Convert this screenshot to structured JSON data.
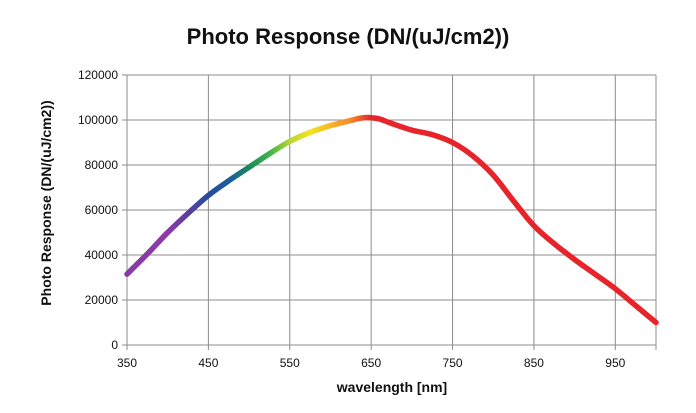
{
  "chart_data": {
    "type": "line",
    "title": "Photo Response (DN/(uJ/cm2))",
    "xlabel": "wavelength [nm]",
    "ylabel": "Photo Response (DN/(uJ/cm2))",
    "xlim": [
      350,
      1000
    ],
    "ylim": [
      0,
      120000
    ],
    "x_ticks": [
      350,
      450,
      550,
      650,
      750,
      850,
      950
    ],
    "y_ticks": [
      0,
      20000,
      40000,
      60000,
      80000,
      100000,
      120000
    ],
    "grid": true,
    "legend": "none",
    "series": [
      {
        "x": [
          350,
          375,
          400,
          425,
          450,
          475,
          500,
          525,
          550,
          575,
          600,
          625,
          640,
          650,
          660,
          675,
          700,
          725,
          750,
          775,
          800,
          825,
          850,
          875,
          900,
          925,
          950,
          975,
          1000
        ],
        "y": [
          31500,
          40500,
          50000,
          58500,
          66500,
          73000,
          79000,
          85000,
          90500,
          94500,
          97500,
          99800,
          101000,
          101000,
          100500,
          98500,
          95500,
          93500,
          90000,
          84000,
          75500,
          64000,
          53000,
          45000,
          38000,
          31500,
          25000,
          17500,
          10000
        ],
        "color": "#e8242b",
        "spectrum_colors": [
          {
            "x": 350,
            "color": "#8a3aa6"
          },
          {
            "x": 400,
            "color": "#8b3aa8"
          },
          {
            "x": 425,
            "color": "#5a3f9e"
          },
          {
            "x": 450,
            "color": "#244c9b"
          },
          {
            "x": 475,
            "color": "#1d5c9c"
          },
          {
            "x": 500,
            "color": "#1a8a5a"
          },
          {
            "x": 525,
            "color": "#3bb54a"
          },
          {
            "x": 550,
            "color": "#b9d532"
          },
          {
            "x": 575,
            "color": "#f2e51d"
          },
          {
            "x": 600,
            "color": "#f7b52a"
          },
          {
            "x": 625,
            "color": "#f08a2a"
          },
          {
            "x": 650,
            "color": "#e8242b"
          },
          {
            "x": 1000,
            "color": "#e8242b"
          }
        ]
      }
    ]
  }
}
